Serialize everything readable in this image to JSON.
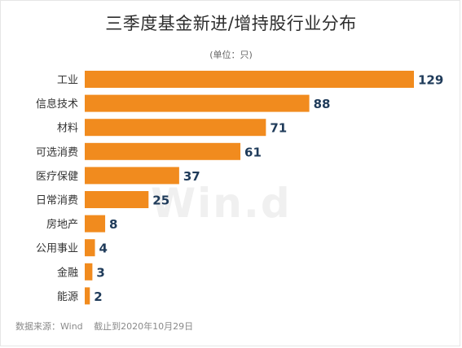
{
  "chart_data": {
    "type": "bar",
    "orientation": "horizontal",
    "title": "三季度基金新进/增持股行业分布",
    "unit": "(单位：只)",
    "categories": [
      "工业",
      "信息技术",
      "材料",
      "可选消费",
      "医疗保健",
      "日常消费",
      "房地产",
      "公用事业",
      "金融",
      "能源"
    ],
    "values": [
      129,
      88,
      71,
      61,
      37,
      25,
      8,
      4,
      3,
      2
    ],
    "bar_color": "#f18b1e",
    "value_label_color": "#1f3b5a",
    "xlim": [
      0,
      129
    ],
    "grid": false,
    "legend": "none"
  },
  "watermark": "Win.d",
  "source": {
    "label": "数据来源：Wind",
    "cutoff": "截止到2020年10月29日"
  }
}
